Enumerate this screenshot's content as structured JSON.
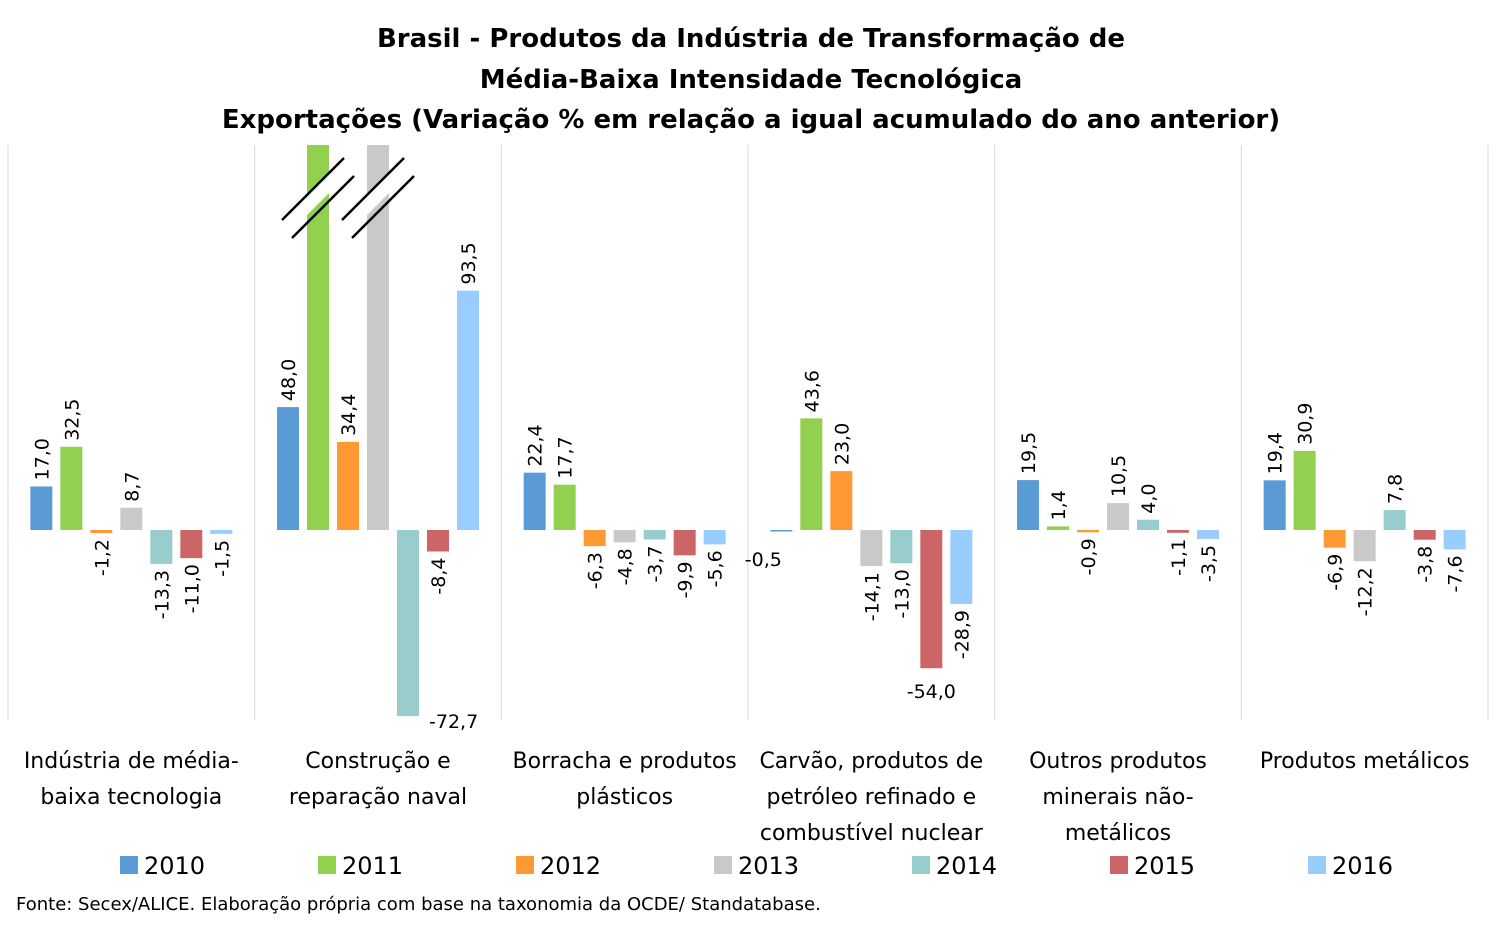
{
  "chart_data": {
    "type": "bar",
    "title": [
      "Brasil - Produtos da Indústria de Transformação de",
      "Média-Baixa Intensidade Tecnológica",
      "Exportações (Variação % em relação a igual acumulado do ano anterior)"
    ],
    "categories": [
      [
        "Indústria de média-",
        "baixa tecnologia"
      ],
      [
        "Construção e",
        "reparação naval"
      ],
      [
        "Borracha e produtos",
        "plásticos"
      ],
      [
        "Carvão, produtos de",
        "petróleo refinado e",
        "combustível nuclear"
      ],
      [
        "Outros produtos",
        "minerais não-",
        "metálicos"
      ],
      [
        "Produtos metálicos"
      ]
    ],
    "series": [
      {
        "name": "2010",
        "color": "#5b9bd5",
        "values": [
          17.0,
          48.0,
          22.4,
          -0.5,
          19.5,
          19.4
        ],
        "labels": [
          "17,0",
          "48,0",
          "22,4",
          "-0,5",
          "19,5",
          "19,4"
        ]
      },
      {
        "name": "2011",
        "color": "#92d050",
        "values": [
          32.5,
          null,
          17.7,
          43.6,
          1.4,
          30.9
        ],
        "labels": [
          "32,5",
          "",
          "17,7",
          "43,6",
          "1,4",
          "30,9"
        ]
      },
      {
        "name": "2012",
        "color": "#ff9933",
        "values": [
          -1.2,
          34.4,
          -6.3,
          23.0,
          -0.9,
          -6.9
        ],
        "labels": [
          "-1,2",
          "34,4",
          "-6,3",
          "23,0",
          "-0,9",
          "-6,9"
        ]
      },
      {
        "name": "2013",
        "color": "#c9c9c9",
        "values": [
          8.7,
          null,
          -4.8,
          -14.1,
          10.5,
          -12.2
        ],
        "labels": [
          "8,7",
          "",
          "-4,8",
          "-14,1",
          "10,5",
          "-12,2"
        ]
      },
      {
        "name": "2014",
        "color": "#99cccc",
        "values": [
          -13.3,
          -72.7,
          -3.7,
          -13.0,
          4.0,
          7.8
        ],
        "labels": [
          "-13,3",
          "-72,7",
          "-3,7",
          "-13,0",
          "4,0",
          "7,8"
        ]
      },
      {
        "name": "2015",
        "color": "#cc6666",
        "values": [
          -11.0,
          -8.4,
          -9.9,
          -54.0,
          -1.1,
          -3.8
        ],
        "labels": [
          "-11,0",
          "-8,4",
          "-9,9",
          "-54,0",
          "-1,1",
          "-3,8"
        ]
      },
      {
        "name": "2016",
        "color": "#99ccff",
        "values": [
          -1.5,
          93.5,
          -5.6,
          -28.9,
          -3.5,
          -7.6
        ],
        "labels": [
          "-1,5",
          "93,5",
          "-5,6",
          "-28,9",
          "-3,5",
          "-7,6"
        ]
      }
    ],
    "truncated_bars": [
      {
        "category": 1,
        "series": 1
      },
      {
        "category": 1,
        "series": 3
      }
    ],
    "ylim": [
      -75,
      150
    ],
    "grid": false,
    "legend_position": "bottom"
  },
  "source": "Fonte: Secex/ALICE. Elaboração própria com base na taxonomia da OCDE/ Standatabase."
}
